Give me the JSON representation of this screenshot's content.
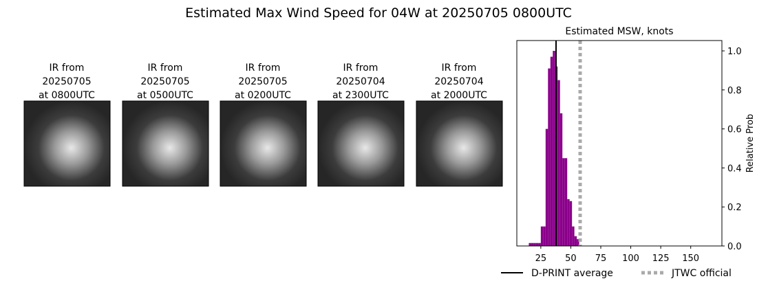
{
  "title": "Estimated Max Wind Speed for 04W at 20250705 0800UTC",
  "panels": [
    {
      "lines": [
        "IR from",
        "20250705",
        "at 0800UTC"
      ]
    },
    {
      "lines": [
        "IR from",
        "20250705",
        "at 0500UTC"
      ]
    },
    {
      "lines": [
        "IR from",
        "20250705",
        "at 0200UTC"
      ]
    },
    {
      "lines": [
        "IR from",
        "20250704",
        "at 2300UTC"
      ]
    },
    {
      "lines": [
        "IR from",
        "20250704",
        "at 2000UTC"
      ]
    }
  ],
  "chart_data": {
    "type": "histogram",
    "title": "Estimated MSW, knots",
    "ylabel": "Relative Prob",
    "bins": [
      15,
      17,
      19,
      21,
      23,
      25,
      27,
      29,
      31,
      33,
      35,
      37,
      39,
      41,
      43,
      45,
      47,
      49,
      51,
      53,
      55,
      57
    ],
    "values": [
      0.015,
      0.015,
      0.015,
      0.015,
      0.015,
      0.1,
      0.1,
      0.6,
      0.91,
      0.97,
      1.0,
      0.92,
      0.85,
      0.68,
      0.45,
      0.45,
      0.24,
      0.23,
      0.1,
      0.05,
      0.035
    ],
    "color": "#8b008b",
    "xlim": [
      5,
      176
    ],
    "xticks": [
      25,
      50,
      75,
      100,
      125,
      150
    ],
    "ylim": [
      0,
      1.053
    ],
    "yticks": [
      {
        "value": 0,
        "label": "0.0"
      },
      {
        "value": 0.2,
        "label": "0.2"
      },
      {
        "value": 0.4,
        "label": "0.4"
      },
      {
        "value": 0.6,
        "label": "0.6"
      },
      {
        "value": 0.8,
        "label": "0.8"
      },
      {
        "value": 1.0,
        "label": "1.0"
      }
    ],
    "lines": [
      {
        "name": "D-PRINT average",
        "value": 37.7,
        "color": "#000000",
        "dashed": false
      },
      {
        "name": "JTWC official",
        "value": 57.8,
        "color": "#aaaaaa",
        "dashed": true
      }
    ]
  }
}
